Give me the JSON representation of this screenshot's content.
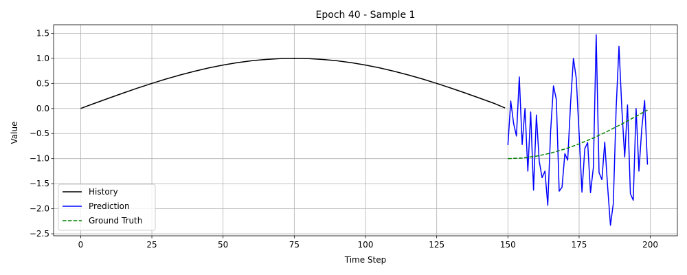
{
  "chart_data": {
    "type": "line",
    "title": "Epoch 40 - Sample 1",
    "xlabel": "Time Step",
    "ylabel": "Value",
    "xlim": [
      -9.5,
      209.5
    ],
    "ylim": [
      -2.54,
      1.67
    ],
    "xticks": [
      0,
      25,
      50,
      75,
      100,
      125,
      150,
      175,
      200
    ],
    "yticks": [
      1.5,
      1.0,
      0.5,
      0.0,
      -0.5,
      -1.0,
      -1.5,
      -2.0,
      -2.5
    ],
    "xtick_labels": [
      "0",
      "25",
      "50",
      "75",
      "100",
      "125",
      "150",
      "175",
      "200"
    ],
    "ytick_labels": [
      "1.5",
      "1.0",
      "0.5",
      "0.0",
      "−0.5",
      "−1.0",
      "−1.5",
      "−2.0",
      "−2.5"
    ],
    "grid": true,
    "legend_position": "lower-left",
    "series": [
      {
        "name": "History",
        "color": "#000000",
        "style": "solid",
        "x": [
          0,
          5,
          10,
          15,
          20,
          25,
          30,
          35,
          40,
          45,
          50,
          55,
          60,
          65,
          70,
          75,
          80,
          85,
          90,
          95,
          100,
          105,
          110,
          115,
          120,
          125,
          130,
          135,
          140,
          145,
          149
        ],
        "y": [
          0.0,
          0.105,
          0.208,
          0.309,
          0.407,
          0.5,
          0.588,
          0.669,
          0.743,
          0.809,
          0.866,
          0.914,
          0.951,
          0.978,
          0.995,
          1.0,
          0.995,
          0.978,
          0.951,
          0.914,
          0.866,
          0.809,
          0.743,
          0.669,
          0.588,
          0.5,
          0.407,
          0.309,
          0.208,
          0.105,
          0.01
        ]
      },
      {
        "name": "Prediction",
        "color": "#0000ff",
        "style": "solid",
        "x": [
          150,
          151,
          152,
          153,
          154,
          155,
          156,
          157,
          158,
          159,
          160,
          161,
          162,
          163,
          164,
          165,
          166,
          167,
          168,
          169,
          170,
          171,
          172,
          173,
          174,
          175,
          176,
          177,
          178,
          179,
          180,
          181,
          182,
          183,
          184,
          185,
          186,
          187,
          188,
          189,
          190,
          191,
          192,
          193,
          194,
          195,
          196,
          197,
          198,
          199
        ],
        "y": [
          -0.73,
          0.15,
          -0.3,
          -0.55,
          0.63,
          -0.72,
          0.0,
          -1.25,
          -0.07,
          -1.63,
          -0.13,
          -1.05,
          -1.38,
          -1.25,
          -1.93,
          -0.45,
          0.45,
          0.18,
          -1.65,
          -1.57,
          -0.9,
          -1.03,
          0.1,
          1.0,
          0.6,
          -0.5,
          -1.67,
          -0.8,
          -0.68,
          -1.68,
          -1.18,
          1.47,
          -1.28,
          -1.42,
          -0.67,
          -1.55,
          -2.33,
          -1.9,
          0.0,
          1.24,
          0.0,
          -0.97,
          0.07,
          -1.7,
          -1.83,
          0.0,
          -1.25,
          -0.4,
          0.16,
          -1.12
        ]
      },
      {
        "name": "Ground Truth",
        "color": "#008000",
        "style": "dashed",
        "x": [
          150,
          155,
          160,
          165,
          170,
          175,
          180,
          185,
          190,
          195,
          199
        ],
        "y": [
          -1.0,
          -0.988,
          -0.951,
          -0.891,
          -0.809,
          -0.707,
          -0.588,
          -0.454,
          -0.309,
          -0.156,
          -0.03
        ]
      }
    ]
  }
}
